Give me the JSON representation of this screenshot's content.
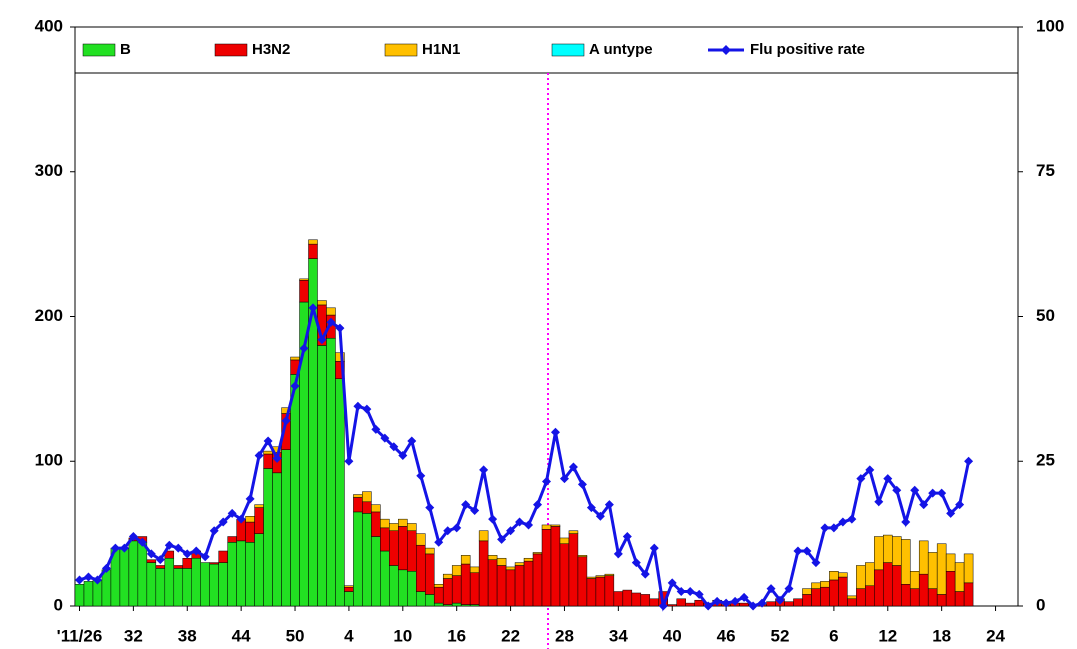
{
  "chart_data": {
    "type": "bar",
    "categories": [
      "'11/26",
      null,
      null,
      null,
      null,
      null,
      "32",
      null,
      null,
      null,
      null,
      null,
      "38",
      null,
      null,
      null,
      null,
      null,
      "44",
      null,
      null,
      null,
      null,
      null,
      "50",
      null,
      null,
      null,
      null,
      null,
      "4",
      null,
      null,
      null,
      null,
      null,
      "10",
      null,
      null,
      null,
      null,
      null,
      "16",
      null,
      null,
      null,
      null,
      null,
      "22",
      null,
      null,
      null,
      null,
      null,
      "28",
      null,
      null,
      null,
      null,
      null,
      "34",
      null,
      null,
      null,
      null,
      null,
      "40",
      null,
      null,
      null,
      null,
      null,
      "46",
      null,
      null,
      null,
      null,
      null,
      "52",
      null,
      null,
      null,
      null,
      null,
      "6",
      null,
      null,
      null,
      null,
      null,
      "12",
      null,
      null,
      null,
      null,
      null,
      "18",
      null,
      null,
      null,
      null,
      null,
      "24",
      null,
      null
    ],
    "ylim": [
      0,
      400
    ],
    "yticks": [
      0,
      100,
      200,
      300,
      400
    ],
    "y2lim": [
      0,
      100
    ],
    "y2ticks": [
      0,
      25,
      50,
      75,
      100
    ],
    "stacked": true,
    "series": [
      {
        "name": "B",
        "color": "#22e022",
        "values": [
          15,
          17,
          18,
          25,
          40,
          40,
          45,
          44,
          30,
          26,
          33,
          26,
          26,
          33,
          30,
          29,
          30,
          44,
          45,
          44,
          50,
          95,
          92,
          108,
          160,
          210,
          240,
          180,
          185,
          157,
          10,
          65,
          64,
          48,
          38,
          28,
          25,
          24,
          10,
          8,
          2,
          1,
          2,
          1,
          1,
          0,
          0,
          0,
          0,
          0,
          0,
          0,
          0,
          0,
          0,
          0,
          0,
          0,
          0,
          0,
          0,
          0,
          0,
          0,
          0,
          0,
          0,
          0,
          0,
          0,
          0,
          0,
          0,
          0,
          0,
          0,
          0,
          0,
          0,
          0,
          0,
          0,
          0,
          0,
          0,
          0,
          0,
          0,
          0,
          0,
          0,
          0,
          0,
          0,
          0,
          0,
          0,
          0,
          0,
          0,
          null,
          null,
          null,
          null,
          null
        ]
      },
      {
        "name": "H3N2",
        "color": "#ee0000",
        "values": [
          0,
          0,
          0,
          0,
          0,
          0,
          2,
          4,
          2,
          2,
          5,
          2,
          7,
          5,
          0,
          1,
          8,
          4,
          15,
          14,
          18,
          10,
          14,
          25,
          10,
          15,
          10,
          28,
          16,
          12,
          3,
          10,
          8,
          17,
          16,
          24,
          30,
          28,
          32,
          28,
          11,
          18,
          19,
          28,
          22,
          45,
          32,
          28,
          25,
          28,
          31,
          36,
          53,
          55,
          43,
          50,
          34,
          19,
          20,
          21,
          10,
          11,
          9,
          8,
          5,
          10,
          1,
          5,
          2,
          4,
          2,
          4,
          1,
          2,
          2,
          1,
          1,
          3,
          5,
          3,
          5,
          8,
          12,
          13,
          18,
          20,
          5,
          12,
          14,
          25,
          30,
          28,
          15,
          12,
          22,
          12,
          8,
          24,
          10,
          16,
          null,
          null,
          null,
          null,
          null
        ]
      },
      {
        "name": "H1N1",
        "color": "#ffc000",
        "values": [
          0,
          0,
          0,
          0,
          0,
          0,
          0,
          0,
          0,
          0,
          0,
          0,
          0,
          0,
          0,
          0,
          0,
          0,
          0,
          4,
          2,
          2,
          4,
          4,
          2,
          1,
          3,
          3,
          5,
          6,
          1,
          2,
          7,
          5,
          6,
          5,
          5,
          5,
          8,
          4,
          2,
          3,
          7,
          6,
          4,
          7,
          3,
          5,
          2,
          2,
          2,
          1,
          3,
          1,
          4,
          2,
          1,
          1,
          1,
          1,
          0,
          0,
          0,
          0,
          0,
          0,
          0,
          0,
          0,
          0,
          0,
          0,
          0,
          0,
          0,
          0,
          0,
          0,
          0,
          0,
          0,
          4,
          4,
          4,
          6,
          3,
          2,
          16,
          16,
          23,
          19,
          20,
          31,
          12,
          23,
          25,
          35,
          12,
          20,
          20,
          null,
          null,
          null,
          null,
          null
        ]
      },
      {
        "name": "A untype",
        "color": "#00ffff",
        "values": [
          0,
          0,
          0,
          0,
          0,
          0,
          0,
          0,
          0,
          0,
          0,
          0,
          0,
          0,
          0,
          0,
          0,
          0,
          0,
          0,
          0,
          0,
          0,
          0,
          0,
          0,
          0,
          0,
          0,
          0,
          0,
          0,
          0,
          0,
          0,
          0,
          0,
          0,
          0,
          0,
          0,
          0,
          0,
          0,
          0,
          0,
          0,
          0,
          0,
          0,
          0,
          0,
          0,
          0,
          0,
          0,
          0,
          0,
          0,
          0,
          0,
          0,
          0,
          0,
          0,
          0,
          0,
          0,
          0,
          0,
          0,
          0,
          0,
          0,
          0,
          0,
          0,
          0,
          0,
          0,
          0,
          0,
          0,
          0,
          0,
          0,
          0,
          0,
          0,
          0,
          0,
          0,
          0,
          0,
          0,
          0,
          0,
          0,
          0,
          0,
          null,
          null,
          null,
          null,
          null
        ]
      },
      {
        "name": "Flu positive rate",
        "color": "#1414e6",
        "type": "line",
        "axis": "y2",
        "values": [
          4.5,
          5,
          4.5,
          6.5,
          10,
          10,
          12,
          11,
          9,
          8,
          10.5,
          10,
          9,
          9.5,
          8.5,
          13,
          14.5,
          16,
          15,
          18.5,
          26,
          28.5,
          25.5,
          32,
          38,
          44.5,
          51.5,
          46,
          49,
          48,
          25,
          34.5,
          34,
          30.5,
          29,
          27.5,
          26,
          28.5,
          22.5,
          17,
          11,
          13,
          13.5,
          17.5,
          16.5,
          23.5,
          15,
          11.5,
          13,
          14.5,
          14,
          17.5,
          21.5,
          30,
          22,
          24,
          21,
          17,
          15.5,
          17.5,
          9,
          12,
          7.5,
          5.5,
          10,
          0,
          4,
          2.5,
          2.5,
          2,
          0,
          0.8,
          0.5,
          0.8,
          1.5,
          0,
          0.5,
          3,
          1,
          3,
          9.5,
          9.5,
          7.5,
          13.5,
          13.5,
          14.5,
          15,
          22,
          23.5,
          18,
          22,
          20,
          14.5,
          20,
          17.5,
          19.5,
          19.5,
          16,
          17.5,
          25,
          null,
          null,
          null,
          null,
          null
        ]
      }
    ]
  }
}
